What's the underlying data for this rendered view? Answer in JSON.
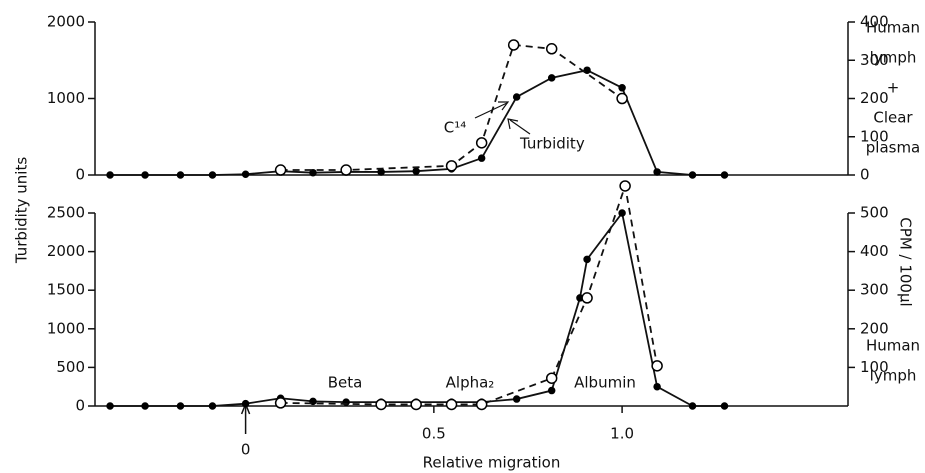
{
  "chart_data": [
    {
      "type": "line",
      "ylim": [
        0,
        2000
      ],
      "yticks": [
        0,
        1000,
        2000
      ],
      "y2lim": [
        0,
        400
      ],
      "y2ticks": [
        0,
        100,
        200,
        300,
        400
      ],
      "xlim": [
        -0.4,
        1.6
      ],
      "series": [
        {
          "name": "Turbidity",
          "color": "#000000",
          "style": "solid",
          "marker": "filled",
          "x": [
            -0.36,
            -0.267,
            -0.173,
            -0.088,
            0,
            0.093,
            0.179,
            0.267,
            0.36,
            0.453,
            0.547,
            0.627,
            0.72,
            0.813,
            0.907,
            1.0,
            1.093,
            1.187,
            1.272
          ],
          "values": [
            0,
            0,
            0,
            0,
            10,
            50,
            30,
            40,
            40,
            50,
            80,
            220,
            1020,
            1270,
            1370,
            1140,
            40,
            0,
            0
          ]
        },
        {
          "name": "C¹⁴",
          "color": "#000000",
          "style": "dashed",
          "marker": "open",
          "axis": "y2",
          "x": [
            0.093,
            0.267,
            0.547,
            0.627,
            0.712,
            0.813,
            1.0
          ],
          "values": [
            13,
            13,
            24,
            84,
            340,
            330,
            200
          ]
        }
      ],
      "annotations": [
        {
          "lines": [
            "Human",
            "lymph",
            "+",
            "Clear",
            "plasma"
          ]
        }
      ]
    },
    {
      "type": "line",
      "ylim": [
        0,
        2500
      ],
      "yticks": [
        0,
        500,
        1000,
        1500,
        2000,
        2500
      ],
      "y2lim": [
        0,
        500
      ],
      "y2ticks": [
        100,
        200,
        300,
        400,
        500
      ],
      "xlim": [
        -0.4,
        1.6
      ],
      "xticks": [
        {
          "value": 0,
          "label": "0"
        },
        0.5,
        {
          "value": 1,
          "label": "1.0"
        }
      ],
      "xlabel": "Relative migration",
      "ylabel": "Turbidity units",
      "y2label": "CPM / 100μl",
      "series": [
        {
          "color": "#000000",
          "style": "solid",
          "marker": "filled",
          "x": [
            -0.36,
            -0.267,
            -0.173,
            -0.088,
            0,
            0.093,
            0.179,
            0.267,
            0.36,
            0.453,
            0.547,
            0.627,
            0.72,
            0.813,
            0.888,
            0.907,
            1.0,
            1.093,
            1.187,
            1.272
          ],
          "values": [
            0,
            0,
            0,
            0,
            30,
            100,
            60,
            50,
            50,
            50,
            50,
            50,
            90,
            200,
            1400,
            1900,
            2500,
            250,
            0,
            0
          ]
        },
        {
          "color": "#000000",
          "style": "dashed",
          "marker": "open",
          "axis": "y2",
          "x": [
            0.093,
            0.36,
            0.453,
            0.547,
            0.627,
            0.813,
            0.907,
            1.008,
            1.093
          ],
          "values": [
            8,
            4,
            4,
            4,
            4,
            72,
            280,
            570,
            104
          ]
        }
      ],
      "annotations": [
        {
          "lines": [
            "Human",
            "lymph"
          ]
        },
        {
          "lines": [
            "Beta"
          ]
        },
        {
          "lines": [
            "Alpha₂"
          ]
        },
        {
          "lines": [
            "Albumin"
          ]
        }
      ]
    }
  ]
}
